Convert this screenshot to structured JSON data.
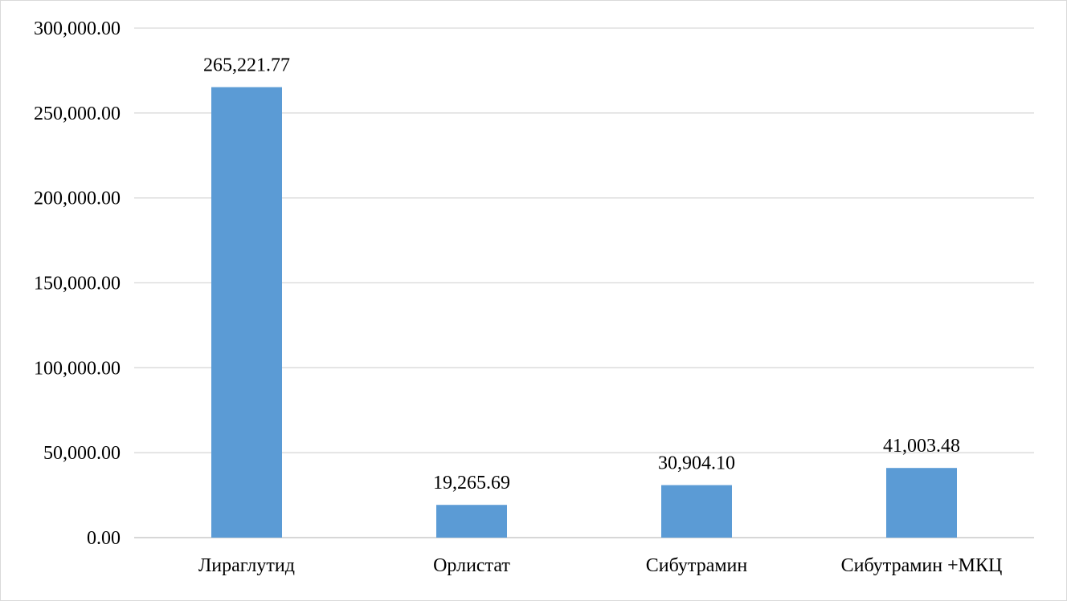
{
  "chart_data": {
    "type": "bar",
    "categories": [
      "Лираглутид",
      "Орлистат",
      "Сибутрамин",
      "Сибутрамин +МКЦ"
    ],
    "values": [
      265221.77,
      19265.69,
      30904.1,
      41003.48
    ],
    "data_labels": [
      "265,221.77",
      "19,265.69",
      "30,904.10",
      "41,003.48"
    ],
    "y_ticks": [
      "0.00",
      "50,000.00",
      "100,000.00",
      "150,000.00",
      "200,000.00",
      "250,000.00",
      "300,000.00"
    ],
    "ylim": [
      0,
      300000
    ],
    "grid": true,
    "legend": "none",
    "bar_color": "#5b9bd5",
    "title": "",
    "xlabel": "",
    "ylabel": ""
  }
}
